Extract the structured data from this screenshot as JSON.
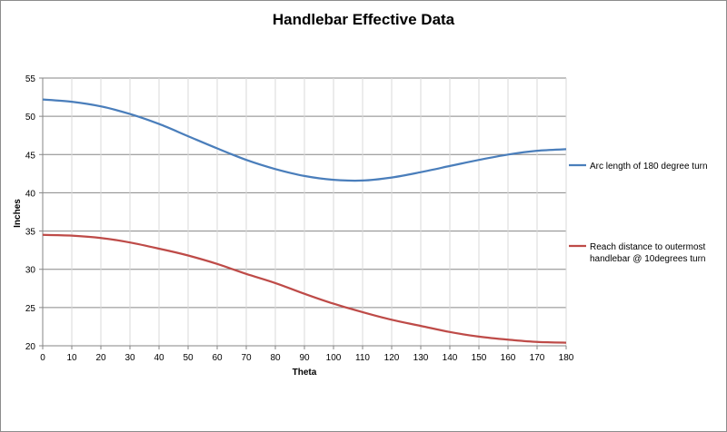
{
  "chart_data": {
    "type": "line",
    "title": "Handlebar Effective Data",
    "xlabel": "Theta",
    "ylabel": "Inches",
    "xlim": [
      0,
      180
    ],
    "ylim": [
      20,
      55
    ],
    "x_ticks": [
      0,
      10,
      20,
      30,
      40,
      50,
      60,
      70,
      80,
      90,
      100,
      110,
      120,
      130,
      140,
      150,
      160,
      170,
      180
    ],
    "y_ticks": [
      20,
      25,
      30,
      35,
      40,
      45,
      50,
      55
    ],
    "grid": true,
    "legend_position": "right",
    "series": [
      {
        "name": "Arc length of 180 degree turn",
        "color": "#4a7ebb",
        "x": [
          0,
          10,
          20,
          30,
          40,
          50,
          60,
          70,
          80,
          90,
          100,
          110,
          120,
          130,
          140,
          150,
          160,
          170,
          180
        ],
        "y": [
          52.2,
          51.9,
          51.3,
          50.3,
          49.0,
          47.4,
          45.8,
          44.3,
          43.1,
          42.2,
          41.7,
          41.6,
          42.0,
          42.7,
          43.5,
          44.3,
          45.0,
          45.5,
          45.7
        ]
      },
      {
        "name": "Reach distance to outermost handlebar @ 10degrees turn",
        "color": "#be4b48",
        "x": [
          0,
          10,
          20,
          30,
          40,
          50,
          60,
          70,
          80,
          90,
          100,
          110,
          120,
          130,
          140,
          150,
          160,
          170,
          180
        ],
        "y": [
          34.5,
          34.4,
          34.1,
          33.5,
          32.7,
          31.8,
          30.7,
          29.4,
          28.2,
          26.8,
          25.5,
          24.4,
          23.4,
          22.6,
          21.8,
          21.2,
          20.8,
          20.5,
          20.4
        ]
      }
    ]
  }
}
